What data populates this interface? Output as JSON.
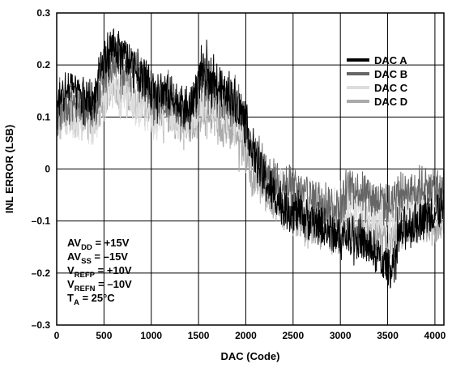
{
  "chart_data": {
    "type": "line",
    "title": "",
    "xlabel": "DAC (Code)",
    "ylabel": "INL ERROR (LSB)",
    "xlim": [
      0,
      4095
    ],
    "ylim": [
      -0.3,
      0.3
    ],
    "x_ticks": [
      0,
      500,
      1000,
      1500,
      2000,
      2500,
      3000,
      3500,
      4000
    ],
    "y_ticks": [
      -0.3,
      -0.2,
      -0.1,
      0,
      0.1,
      0.2,
      0.3
    ],
    "x_tick_labels": [
      "0",
      "500",
      "1000",
      "1500",
      "2000",
      "2500",
      "3000",
      "3500",
      "4000"
    ],
    "y_tick_labels": [
      "–0.3",
      "–0.2",
      "–0.1",
      "0",
      "0.1",
      "0.2",
      "0.3"
    ],
    "grid": true,
    "legend_position": "top-right",
    "x": [
      0,
      128,
      256,
      384,
      500,
      600,
      700,
      800,
      900,
      1000,
      1024,
      1100,
      1200,
      1300,
      1400,
      1536,
      1600,
      1700,
      1800,
      1900,
      2000,
      2048,
      2100,
      2200,
      2300,
      2400,
      2500,
      2600,
      2700,
      2800,
      2900,
      3000,
      3072,
      3100,
      3200,
      3300,
      3400,
      3500,
      3584,
      3600,
      3700,
      3800,
      3900,
      4000,
      4095
    ],
    "series": [
      {
        "name": "DAC A",
        "color": "#000000",
        "values": [
          0.11,
          0.15,
          0.13,
          0.12,
          0.2,
          0.23,
          0.21,
          0.19,
          0.17,
          0.15,
          0.13,
          0.14,
          0.13,
          0.12,
          0.1,
          0.18,
          0.17,
          0.15,
          0.14,
          0.12,
          0.08,
          0.04,
          0.01,
          -0.03,
          -0.06,
          -0.08,
          -0.09,
          -0.1,
          -0.11,
          -0.12,
          -0.13,
          -0.14,
          -0.14,
          -0.13,
          -0.15,
          -0.16,
          -0.18,
          -0.2,
          -0.19,
          -0.15,
          -0.12,
          -0.11,
          -0.1,
          -0.09,
          -0.09
        ]
      },
      {
        "name": "DAC B",
        "color": "#666666",
        "values": [
          0.09,
          0.12,
          0.11,
          0.1,
          0.17,
          0.2,
          0.19,
          0.18,
          0.16,
          0.14,
          0.12,
          0.13,
          0.12,
          0.11,
          0.09,
          0.15,
          0.14,
          0.13,
          0.12,
          0.11,
          0.07,
          0.04,
          0.02,
          -0.01,
          -0.03,
          -0.04,
          -0.05,
          -0.06,
          -0.07,
          -0.07,
          -0.08,
          -0.09,
          -0.05,
          -0.04,
          -0.05,
          -0.06,
          -0.07,
          -0.08,
          -0.07,
          -0.06,
          -0.05,
          -0.05,
          -0.04,
          -0.05,
          -0.05
        ]
      },
      {
        "name": "DAC C",
        "color": "#dddddd",
        "values": [
          0.07,
          0.09,
          0.08,
          0.07,
          0.12,
          0.14,
          0.13,
          0.12,
          0.11,
          0.1,
          0.09,
          0.1,
          0.1,
          0.09,
          0.08,
          0.12,
          0.12,
          0.11,
          0.1,
          0.09,
          0.06,
          0.03,
          0.01,
          -0.02,
          -0.04,
          -0.05,
          -0.06,
          -0.07,
          -0.07,
          -0.08,
          -0.09,
          -0.09,
          -0.07,
          -0.07,
          -0.08,
          -0.09,
          -0.1,
          -0.11,
          -0.1,
          -0.09,
          -0.08,
          -0.08,
          -0.07,
          -0.08,
          -0.08
        ]
      },
      {
        "name": "DAC D",
        "color": "#aaaaaa",
        "values": [
          0.08,
          0.1,
          0.09,
          0.08,
          0.13,
          0.15,
          0.14,
          0.13,
          0.12,
          0.11,
          0.1,
          0.1,
          0.09,
          0.09,
          0.07,
          0.1,
          0.09,
          0.08,
          0.07,
          0.06,
          0.02,
          -0.01,
          -0.02,
          -0.05,
          -0.07,
          -0.09,
          -0.1,
          -0.11,
          -0.12,
          -0.12,
          -0.13,
          -0.13,
          -0.12,
          -0.12,
          -0.13,
          -0.14,
          -0.14,
          -0.15,
          -0.14,
          -0.13,
          -0.12,
          -0.12,
          -0.11,
          -0.12,
          -0.12
        ]
      }
    ],
    "annotations": [
      {
        "main": "AV",
        "sub": "DD",
        "rest": " = +15V"
      },
      {
        "main": "AV",
        "sub": "SS",
        "rest": " = –15V"
      },
      {
        "main": "V",
        "sub": "REFP",
        "rest": " = +10V"
      },
      {
        "main": "V",
        "sub": "REFN",
        "rest": " = –10V"
      },
      {
        "main": "T",
        "sub": "A",
        "rest": " = 25°C"
      }
    ]
  }
}
